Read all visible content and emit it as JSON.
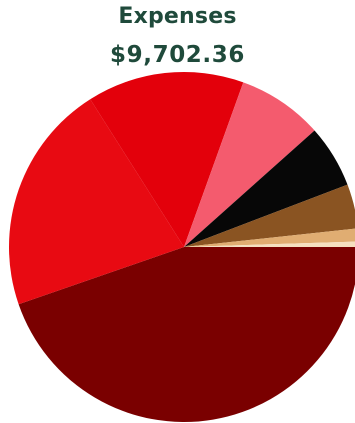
{
  "chart_data": {
    "type": "pie",
    "title": "Expenses",
    "subtitle": "$9,702.36",
    "slices": [
      {
        "value": 44.7,
        "color": "#7a0000"
      },
      {
        "value": 21.3,
        "color": "#e80a12"
      },
      {
        "value": 14.5,
        "color": "#e3000b"
      },
      {
        "value": 7.9,
        "color": "#f45b6e"
      },
      {
        "value": 5.8,
        "color": "#070707"
      },
      {
        "value": 4.1,
        "color": "#8a5422"
      },
      {
        "value": 1.2,
        "color": "#e0ad72"
      },
      {
        "value": 0.5,
        "color": "#f5dfc0"
      }
    ]
  }
}
